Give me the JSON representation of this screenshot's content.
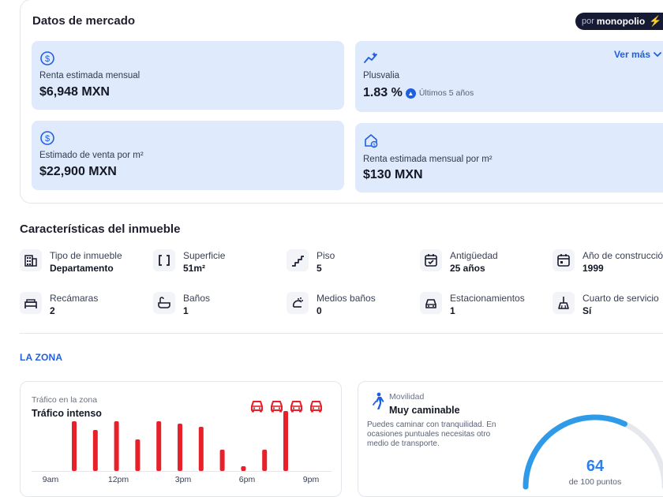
{
  "market": {
    "title": "Datos de mercado",
    "brand_prefix": "por",
    "brand_name": "monopolio",
    "see_more": "Ver más",
    "rent_monthly": {
      "label": "Renta estimada mensual",
      "value": "$6,948 MXN",
      "icon": "dollar-circle-icon"
    },
    "appreciation": {
      "label": "Plusvalia",
      "value": "1.83 %",
      "period": "Últimos 5 años",
      "icon": "trend-sparkle-icon"
    },
    "sale_per_m2": {
      "label": "Estimado de venta por m²",
      "value": "$22,900 MXN",
      "icon": "dollar-circle-icon"
    },
    "rent_per_m2": {
      "label": "Renta estimada mensual por m²",
      "value": "$130 MXN",
      "icon": "house-dollar-icon"
    }
  },
  "features": {
    "title": "Características del inmueble",
    "items": [
      {
        "label": "Tipo de inmueble",
        "value": "Departamento",
        "icon": "building-icon"
      },
      {
        "label": "Superficie",
        "value": "51m²",
        "icon": "area-brackets-icon"
      },
      {
        "label": "Piso",
        "value": "5",
        "icon": "stairs-icon"
      },
      {
        "label": "Antigüedad",
        "value": "25 años",
        "icon": "calendar-check-icon"
      },
      {
        "label": "Año de construcción",
        "value": "1999",
        "icon": "calendar-icon"
      },
      {
        "label": "Recámaras",
        "value": "2",
        "icon": "bed-icon"
      },
      {
        "label": "Baños",
        "value": "1",
        "icon": "bathtub-icon"
      },
      {
        "label": "Medios baños",
        "value": "0",
        "icon": "shower-icon"
      },
      {
        "label": "Estacionamientos",
        "value": "1",
        "icon": "car-icon"
      },
      {
        "label": "Cuarto de servicio",
        "value": "Sí",
        "icon": "broom-icon"
      }
    ]
  },
  "zone": {
    "title": "LA ZONA",
    "traffic": {
      "label": "Tráfico en la zona",
      "level": "Tráfico intenso",
      "level_cars_active": 4,
      "level_cars_total": 4,
      "color": "#e8202a"
    },
    "mobility": {
      "label": "Movilidad",
      "level": "Muy caminable",
      "description": "Puedes caminar con tranquilidad. En ocasiones puntuales necesitas otro medio de transporte.",
      "score": "64",
      "score_max": 100,
      "score_caption": "de 100 puntos",
      "gauge_color": "#2f9be8"
    }
  },
  "chart_data": {
    "type": "bar",
    "title": "Tráfico en la zona",
    "x_ticks": [
      "9am",
      "12pm",
      "3pm",
      "6pm",
      "9pm"
    ],
    "values": [
      0.63,
      0.52,
      0.63,
      0.4,
      0.63,
      0.6,
      0.56,
      0.27,
      0.06,
      0.27,
      0.76
    ],
    "ylim": [
      0,
      1
    ],
    "grid": false,
    "color": "#e8202a"
  }
}
